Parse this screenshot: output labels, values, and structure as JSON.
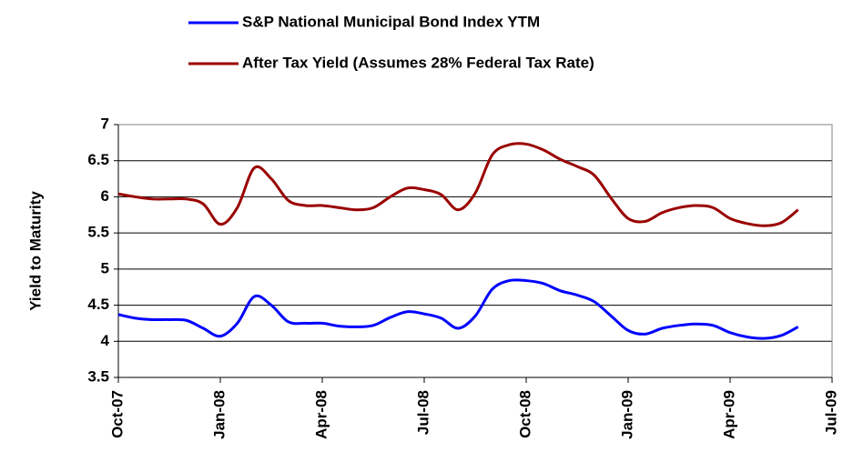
{
  "chart_data": {
    "type": "line",
    "ylabel": "Yield to Maturity",
    "categories": [
      "Oct-07",
      null,
      null,
      null,
      null,
      null,
      "Jan-08",
      null,
      null,
      null,
      null,
      null,
      "Apr-08",
      null,
      null,
      null,
      null,
      null,
      "Jul-08",
      null,
      null,
      null,
      null,
      null,
      "Oct-08",
      null,
      null,
      null,
      null,
      null,
      "Jan-09",
      null,
      null,
      null,
      null,
      null,
      "Apr-09",
      null,
      null,
      null,
      null,
      null,
      "Jul-09"
    ],
    "series": [
      {
        "name": "S&P National Municipal Bond Index YTM",
        "color": "#0000ff",
        "values": [
          4.37,
          4.32,
          4.3,
          4.3,
          4.29,
          4.18,
          4.07,
          4.25,
          4.62,
          4.5,
          4.27,
          4.25,
          4.25,
          4.21,
          4.2,
          4.22,
          4.33,
          4.41,
          4.38,
          4.32,
          4.18,
          4.35,
          4.72,
          4.84,
          4.84,
          4.8,
          4.7,
          4.64,
          4.55,
          4.35,
          4.15,
          4.1,
          4.18,
          4.22,
          4.24,
          4.22,
          4.12,
          4.06,
          4.04,
          4.08,
          4.2,
          null,
          null
        ]
      },
      {
        "name": "After Tax Yield (Assumes 28% Federal Tax Rate)",
        "color": "#990000",
        "values": [
          6.04,
          6.0,
          5.97,
          5.97,
          5.97,
          5.9,
          5.62,
          5.85,
          6.4,
          6.25,
          5.95,
          5.88,
          5.88,
          5.85,
          5.82,
          5.85,
          6.0,
          6.12,
          6.1,
          6.03,
          5.82,
          6.05,
          6.58,
          6.72,
          6.73,
          6.65,
          6.52,
          6.42,
          6.3,
          5.98,
          5.7,
          5.66,
          5.78,
          5.85,
          5.88,
          5.85,
          5.7,
          5.63,
          5.6,
          5.64,
          5.82,
          null,
          null
        ]
      }
    ],
    "ylim": [
      3.5,
      7
    ],
    "yticks": [
      3.5,
      4,
      4.5,
      5,
      5.5,
      6,
      6.5,
      7
    ],
    "grid": true,
    "legend": "top"
  }
}
